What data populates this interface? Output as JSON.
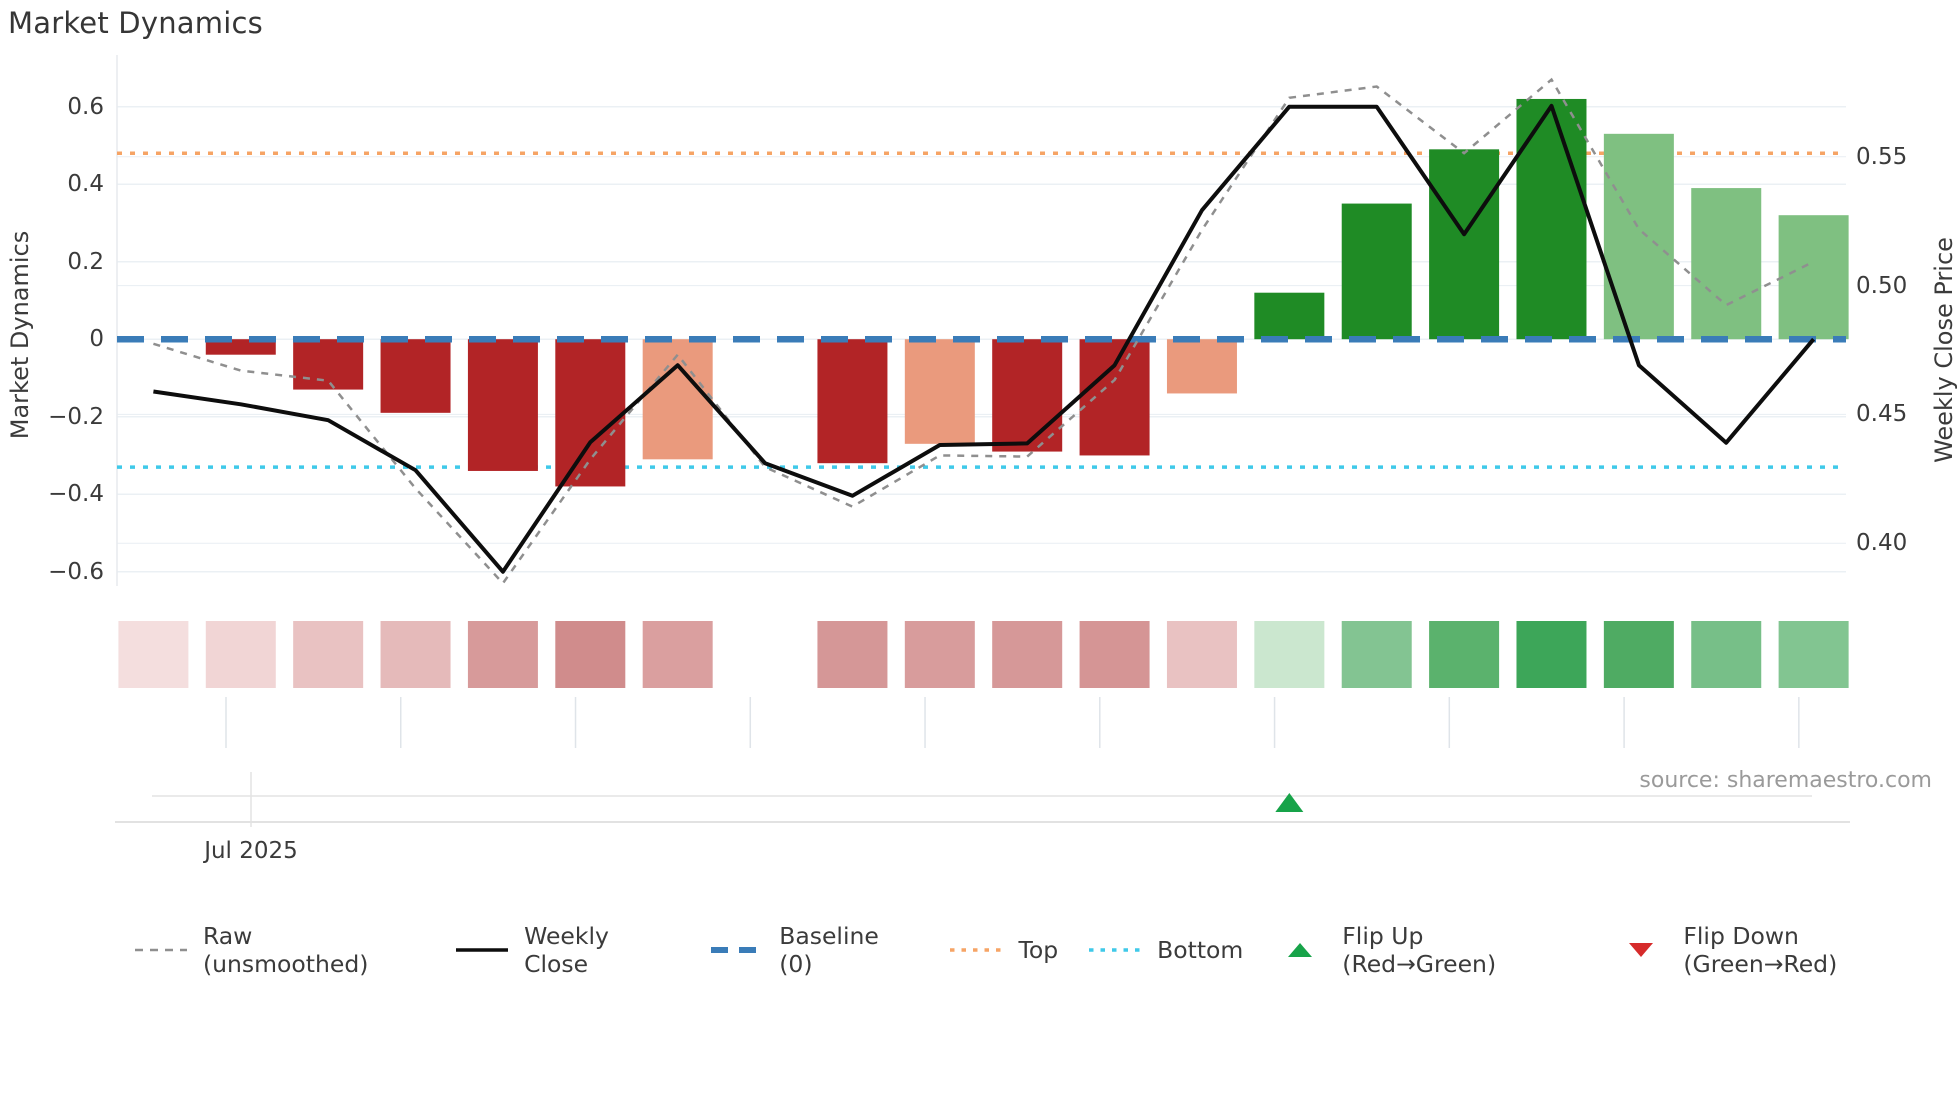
{
  "title": "Market Dynamics",
  "source_note": "source: sharemaestro.com",
  "colors": {
    "bar_negative": "#b22426",
    "bar_negative_soft": "#ea9a7d",
    "bar_positive": "#1f8b25",
    "bar_positive_soft": "#7fc081",
    "weekly_close_line": "#0d0d0d",
    "raw_line": "#8f8f8f",
    "baseline": "#3a7cb8",
    "top_line": "#f6a465",
    "bottom_line": "#3fc9e9",
    "flip_up": "#17a349",
    "flip_down": "#d62b2b",
    "grid": "#ebf0f4",
    "spine": "#e7eaee",
    "minor_tick": "#dfe4e9",
    "bottom_axis_1": "#e3e3e3",
    "bottom_axis_2": "#d8d8d8",
    "text": "#3b3b3b",
    "muted_text": "#9a9a9a"
  },
  "left_axis": {
    "title": "Market Dynamics",
    "tick_labels": [
      "0.6",
      "0.4",
      "0.2",
      "0",
      "−0.2",
      "−0.4",
      "−0.6"
    ],
    "tick_values": [
      0.6,
      0.4,
      0.2,
      0,
      -0.2,
      -0.4,
      -0.6
    ]
  },
  "right_axis": {
    "title": "Weekly Close Price",
    "tick_labels": [
      "0.55",
      "0.50",
      "0.45",
      "0.40"
    ],
    "tick_values": [
      0.55,
      0.5,
      0.45,
      0.4
    ]
  },
  "x_axis": {
    "visible_label": "Jul 2025"
  },
  "legend": [
    {
      "label": "Raw (unsmoothed)",
      "swatch": "dashed",
      "color": "#8f8f8f"
    },
    {
      "label": "Weekly Close",
      "swatch": "solid",
      "color": "#0d0d0d"
    },
    {
      "label": "Baseline (0)",
      "swatch": "long-dash",
      "color": "#3a7cb8"
    },
    {
      "label": "Top",
      "swatch": "dotted",
      "color": "#f6a465"
    },
    {
      "label": "Bottom",
      "swatch": "dotted",
      "color": "#3fc9e9"
    },
    {
      "label": "Flip Up (Red→Green)",
      "swatch": "triangle-up",
      "color": "#17a349"
    },
    {
      "label": "Flip Down (Green→Red)",
      "swatch": "triangle-down",
      "color": "#d62b2b"
    }
  ],
  "chart_data": {
    "type": "combo: bar + line + heatmap strip",
    "weeks": 20,
    "x_note": "20 weekly slots; only visible x tick label is 'Jul 2025' under week 2; week 8 is a data gap (no bar, no heatmap cell)",
    "title": "Market Dynamics",
    "left_ylabel": "Market Dynamics",
    "right_ylabel": "Weekly Close Price",
    "left_ylim": [
      -0.72,
      0.75
    ],
    "bars_market_dynamics": {
      "axis": "left",
      "values": [
        null,
        -0.04,
        -0.13,
        -0.19,
        -0.34,
        -0.38,
        -0.31,
        null,
        -0.32,
        -0.27,
        -0.29,
        -0.3,
        -0.14,
        0.12,
        0.35,
        0.49,
        0.62,
        0.53,
        0.39,
        0.32
      ],
      "colors": [
        null,
        "#b22426",
        "#b22426",
        "#b22426",
        "#b22426",
        "#b22426",
        "#ea9a7d",
        null,
        "#b22426",
        "#ea9a7d",
        "#b22426",
        "#b22426",
        "#ea9a7d",
        "#1f8b25",
        "#1f8b25",
        "#1f8b25",
        "#1f8b25",
        "#7fc081",
        "#7fc081",
        "#7fc081"
      ]
    },
    "weekly_close": {
      "axis": "right",
      "price_values": [
        0.459,
        0.454,
        0.447,
        0.428,
        0.389,
        0.439,
        0.469,
        0.431,
        0.418,
        0.438,
        0.438,
        0.469,
        0.529,
        0.569,
        0.569,
        0.52,
        0.57,
        0.469,
        0.439,
        0.479
      ],
      "left_axis_equiv": [
        -0.135,
        -0.168,
        -0.209,
        -0.338,
        -0.6,
        -0.266,
        -0.067,
        -0.32,
        -0.404,
        -0.273,
        -0.269,
        -0.067,
        0.333,
        0.6,
        0.6,
        0.271,
        0.602,
        -0.067,
        -0.267,
        0.0
      ]
    },
    "raw_unsmoothed": {
      "axis": "right",
      "price_values": [
        0.477,
        0.467,
        0.463,
        0.421,
        0.384,
        0.432,
        0.473,
        0.429,
        0.414,
        0.434,
        0.433,
        0.463,
        0.521,
        0.573,
        0.577,
        0.551,
        0.58,
        0.522,
        0.492,
        0.509
      ],
      "left_axis_equiv": [
        -0.012,
        -0.081,
        -0.107,
        -0.385,
        -0.63,
        -0.31,
        -0.04,
        -0.33,
        -0.432,
        -0.3,
        -0.303,
        -0.105,
        0.282,
        0.623,
        0.652,
        0.48,
        0.67,
        0.284,
        0.088,
        0.2
      ]
    },
    "reference_lines": {
      "baseline": {
        "label": "Baseline (0)",
        "left": 0,
        "price": 0.479
      },
      "top": {
        "label": "Top",
        "left": 0.48,
        "price": 0.551
      },
      "bottom": {
        "label": "Bottom",
        "left": -0.33,
        "price": 0.429
      }
    },
    "flip_markers": {
      "flip_up_week": 14,
      "flip_down_week": null
    },
    "heatmap_strip_colors": [
      "#f4dede",
      "#f1d5d5",
      "#e9c2c2",
      "#e5baba",
      "#d79a9a",
      "#d08c8c",
      "#da9f9f",
      null,
      "#d59797",
      "#d89c9c",
      "#d69898",
      "#d59595",
      "#e9c2c2",
      "#cbe7cf",
      "#83c492",
      "#5bb26d",
      "#3da659",
      "#4fab63",
      "#77bf88",
      "#82c591"
    ],
    "grid": true,
    "legend_position": "bottom"
  }
}
